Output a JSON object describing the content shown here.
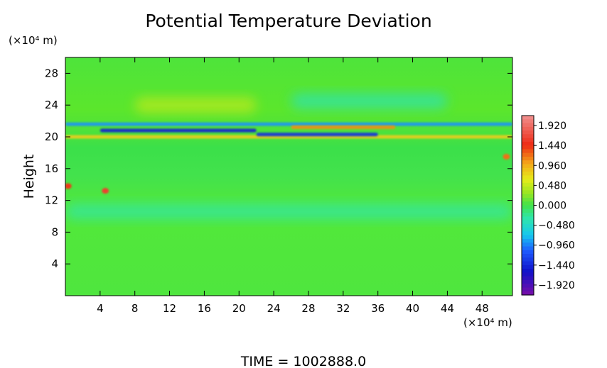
{
  "chart_data": {
    "type": "heatmap",
    "title": "Potential Temperature Deviation",
    "ylabel": "Height",
    "y_unit": "(×10⁴ m)",
    "x_unit": "(×10⁴ m)",
    "xlim": [
      0,
      51.5
    ],
    "ylim": [
      0,
      30
    ],
    "x_ticks": [
      4,
      8,
      12,
      16,
      20,
      24,
      28,
      32,
      36,
      40,
      44,
      48
    ],
    "y_ticks": [
      4,
      8,
      12,
      16,
      20,
      24,
      28
    ],
    "colorbar": {
      "min": -2.16,
      "max": 2.16,
      "labels": [
        "1.920",
        "1.440",
        "0.960",
        "0.480",
        "0.000",
        "−0.480",
        "−0.960",
        "−1.440",
        "−1.920"
      ],
      "label_values": [
        1.92,
        1.44,
        0.96,
        0.48,
        0.0,
        -0.48,
        -0.96,
        -1.44,
        -1.92
      ]
    },
    "features": [
      {
        "x": [
          0,
          51.5
        ],
        "y": 20.0,
        "value": 0.8,
        "note": "warm layer"
      },
      {
        "x": [
          0,
          51.5
        ],
        "y": 21.6,
        "value": -0.9,
        "note": "cold layer"
      },
      {
        "x": [
          4,
          22
        ],
        "y": 20.8,
        "value": -1.5,
        "note": "cold streak"
      },
      {
        "x": [
          22,
          36
        ],
        "y": 20.3,
        "value": -1.4,
        "note": "cold streak"
      },
      {
        "x": [
          26,
          38
        ],
        "y": 21.2,
        "value": 1.1,
        "note": "warm streak"
      },
      {
        "x": [
          8,
          22
        ],
        "y": 24.0,
        "value": 0.45,
        "note": "warm patch"
      },
      {
        "x": [
          26,
          44
        ],
        "y": 24.5,
        "value": -0.35,
        "note": "cool patch"
      },
      {
        "x": 4.6,
        "y": 13.2,
        "value": 1.6,
        "note": "warm cell"
      },
      {
        "x": 0.3,
        "y": 13.8,
        "value": 1.4,
        "note": "warm cell"
      },
      {
        "x": 50.8,
        "y": 17.5,
        "value": 1.2,
        "note": "warm cell"
      },
      {
        "x": [
          0,
          51.5
        ],
        "y": 10.6,
        "value": -0.3,
        "note": "weak cool layer"
      }
    ]
  },
  "footer": {
    "time_label": "TIME  =  1002888.0"
  }
}
